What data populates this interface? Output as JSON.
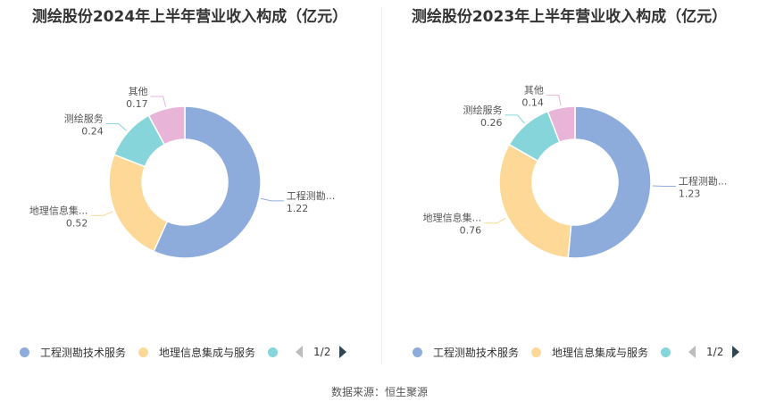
{
  "colors": {
    "gongcheng": "#8eacdb",
    "dili": "#fdd897",
    "cehui": "#86d5da",
    "qita": "#e8b5d8",
    "pager_active": "#2f4554",
    "pager_inactive": "#bdbdbd"
  },
  "chart_data": [
    {
      "type": "pie",
      "title": "测绘股份2024年上半年营业收入构成（亿元）",
      "donut": true,
      "slices": [
        {
          "name": "工程测勘技术服务",
          "label": "工程测勘...",
          "value": 1.22,
          "color": "#8eacdb"
        },
        {
          "name": "地理信息集成与服务",
          "label": "地理信息集...",
          "value": 0.52,
          "color": "#fdd897"
        },
        {
          "name": "测绘服务",
          "label": "测绘服务",
          "value": 0.24,
          "color": "#86d5da"
        },
        {
          "name": "其他",
          "label": "其他",
          "value": 0.17,
          "color": "#e8b5d8"
        }
      ],
      "legend": {
        "position": "bottom",
        "page": "1/2"
      }
    },
    {
      "type": "pie",
      "title": "测绘股份2023年上半年营业收入构成（亿元）",
      "donut": true,
      "slices": [
        {
          "name": "工程测勘技术服务",
          "label": "工程测勘...",
          "value": 1.23,
          "color": "#8eacdb"
        },
        {
          "name": "地理信息集成与服务",
          "label": "地理信息集...",
          "value": 0.76,
          "color": "#fdd897"
        },
        {
          "name": "测绘服务",
          "label": "测绘服务",
          "value": 0.26,
          "color": "#86d5da"
        },
        {
          "name": "其他",
          "label": "其他",
          "value": 0.14,
          "color": "#e8b5d8"
        }
      ],
      "legend": {
        "position": "bottom",
        "page": "1/2"
      }
    }
  ],
  "legend_items": [
    "工程测勘技术服务",
    "地理信息集成与服务"
  ],
  "footer": "数据来源：恒生聚源"
}
